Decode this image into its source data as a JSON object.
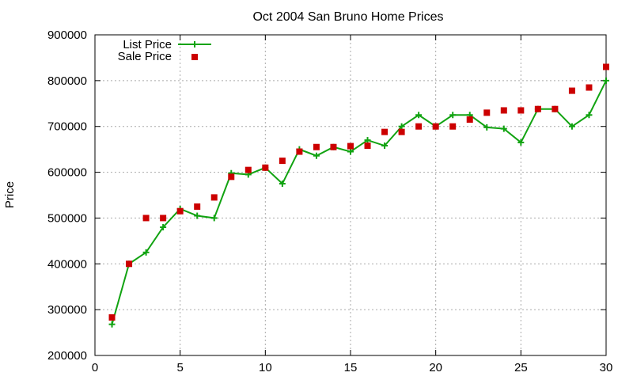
{
  "chart_data": {
    "type": "line",
    "title": "Oct 2004 San Bruno Home Prices",
    "xlabel": "",
    "ylabel": "Price",
    "xlim": [
      0,
      30
    ],
    "ylim": [
      200000,
      900000
    ],
    "x_ticks": [
      0,
      5,
      10,
      15,
      20,
      25,
      30
    ],
    "y_ticks": [
      200000,
      300000,
      400000,
      500000,
      600000,
      700000,
      800000,
      900000
    ],
    "grid": true,
    "legend_position": "top-left",
    "series": [
      {
        "name": "List Price",
        "style": "line+plus-marker",
        "color": "#11a311",
        "x": [
          1,
          2,
          3,
          4,
          5,
          6,
          7,
          8,
          9,
          10,
          11,
          12,
          13,
          14,
          15,
          16,
          17,
          18,
          19,
          20,
          21,
          22,
          23,
          24,
          25,
          26,
          27,
          28,
          29,
          30
        ],
        "y": [
          268000,
          400000,
          425000,
          480000,
          520000,
          505000,
          500000,
          598000,
          595000,
          610000,
          575000,
          650000,
          636000,
          655000,
          645000,
          670000,
          658000,
          700000,
          725000,
          700000,
          725000,
          725000,
          698000,
          695000,
          665000,
          738000,
          738000,
          700000,
          725000,
          800000
        ]
      },
      {
        "name": "Sale Price",
        "style": "square-marker",
        "color": "#cc0000",
        "x": [
          1,
          2,
          3,
          4,
          5,
          6,
          7,
          8,
          9,
          10,
          11,
          12,
          13,
          14,
          15,
          16,
          17,
          18,
          19,
          20,
          21,
          22,
          23,
          24,
          25,
          26,
          27,
          28,
          29,
          30
        ],
        "y": [
          283000,
          400000,
          500000,
          500000,
          515000,
          525000,
          545000,
          590000,
          605000,
          610000,
          625000,
          645000,
          655000,
          655000,
          657000,
          658000,
          688000,
          688000,
          700000,
          700000,
          700000,
          715000,
          730000,
          735000,
          735000,
          738000,
          738000,
          778000,
          785000,
          830000
        ]
      }
    ]
  }
}
